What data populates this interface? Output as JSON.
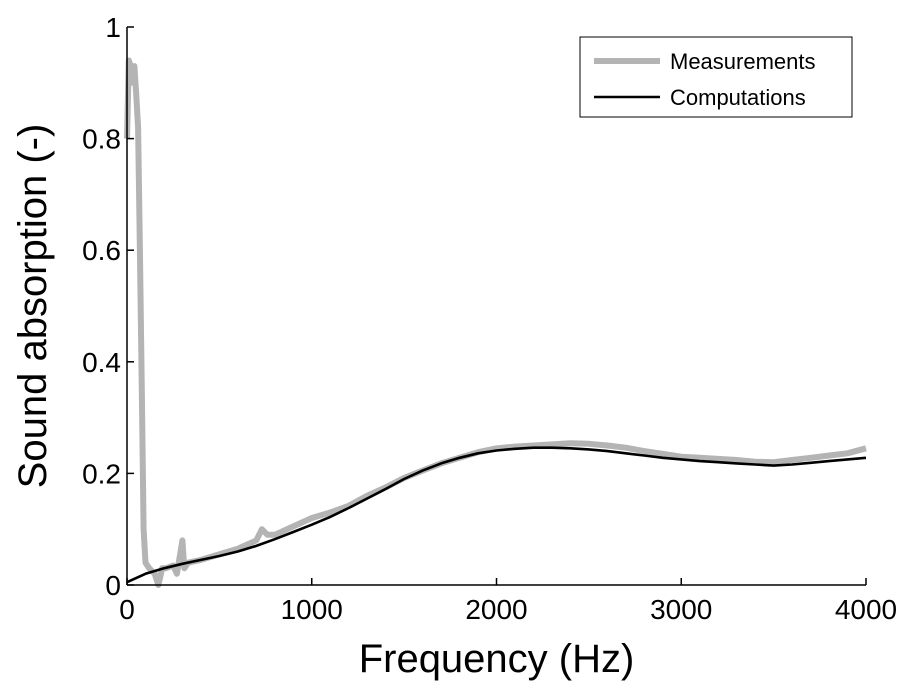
{
  "chart_data": {
    "type": "line",
    "xlabel": "Frequency (Hz)",
    "ylabel": "Sound absorption (-)",
    "xlim": [
      0,
      4000
    ],
    "ylim": [
      0,
      1
    ],
    "xticks": [
      0,
      1000,
      2000,
      3000,
      4000
    ],
    "yticks": [
      0,
      0.2,
      0.4,
      0.6,
      0.8,
      1
    ],
    "xtick_labels": [
      "0",
      "1000",
      "2000",
      "3000",
      "4000"
    ],
    "ytick_labels": [
      "0",
      "0.2",
      "0.4",
      "0.6",
      "0.8",
      "1"
    ],
    "grid": false,
    "legend_position": "top-right",
    "series": [
      {
        "name": "Measurements",
        "color": "#b4b4b4",
        "x": [
          0,
          10,
          20,
          30,
          40,
          50,
          60,
          70,
          80,
          90,
          100,
          120,
          150,
          170,
          190,
          210,
          250,
          270,
          290,
          300,
          310,
          330,
          400,
          500,
          600,
          700,
          730,
          760,
          800,
          900,
          1000,
          1100,
          1200,
          1300,
          1400,
          1500,
          1600,
          1700,
          1800,
          1900,
          2000,
          2100,
          2200,
          2300,
          2400,
          2500,
          2600,
          2700,
          2800,
          2900,
          3000,
          3100,
          3200,
          3300,
          3400,
          3500,
          3600,
          3700,
          3800,
          3900,
          4000
        ],
        "y": [
          0.8,
          0.94,
          0.93,
          0.9,
          0.93,
          0.88,
          0.82,
          0.6,
          0.35,
          0.1,
          0.04,
          0.03,
          0.02,
          0.0,
          0.03,
          0.03,
          0.035,
          0.02,
          0.06,
          0.08,
          0.03,
          0.04,
          0.045,
          0.055,
          0.065,
          0.08,
          0.1,
          0.09,
          0.09,
          0.105,
          0.12,
          0.13,
          0.142,
          0.16,
          0.175,
          0.192,
          0.205,
          0.218,
          0.228,
          0.238,
          0.245,
          0.248,
          0.25,
          0.252,
          0.254,
          0.253,
          0.25,
          0.246,
          0.24,
          0.235,
          0.23,
          0.228,
          0.226,
          0.224,
          0.221,
          0.22,
          0.224,
          0.228,
          0.232,
          0.236,
          0.245
        ]
      },
      {
        "name": "Computations",
        "color": "#000000",
        "x": [
          0,
          100,
          200,
          300,
          400,
          500,
          600,
          700,
          800,
          900,
          1000,
          1100,
          1200,
          1300,
          1400,
          1500,
          1600,
          1700,
          1800,
          1900,
          2000,
          2100,
          2200,
          2300,
          2400,
          2500,
          2600,
          2700,
          2800,
          2900,
          3000,
          3100,
          3200,
          3300,
          3400,
          3500,
          3600,
          3700,
          3800,
          3900,
          4000
        ],
        "y": [
          0.005,
          0.02,
          0.03,
          0.038,
          0.045,
          0.052,
          0.06,
          0.07,
          0.082,
          0.095,
          0.108,
          0.122,
          0.138,
          0.155,
          0.172,
          0.19,
          0.205,
          0.218,
          0.228,
          0.236,
          0.241,
          0.244,
          0.246,
          0.246,
          0.245,
          0.243,
          0.24,
          0.236,
          0.232,
          0.228,
          0.225,
          0.222,
          0.22,
          0.218,
          0.216,
          0.214,
          0.216,
          0.219,
          0.222,
          0.225,
          0.228
        ]
      }
    ]
  }
}
